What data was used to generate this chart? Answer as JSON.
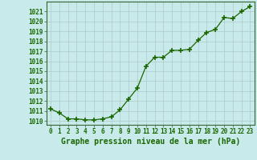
{
  "x": [
    0,
    1,
    2,
    3,
    4,
    5,
    6,
    7,
    8,
    9,
    10,
    11,
    12,
    13,
    14,
    15,
    16,
    17,
    18,
    19,
    20,
    21,
    22,
    23
  ],
  "y": [
    1011.2,
    1010.8,
    1010.2,
    1010.2,
    1010.1,
    1010.1,
    1010.2,
    1010.4,
    1011.1,
    1012.2,
    1013.3,
    1015.5,
    1016.4,
    1016.4,
    1017.1,
    1017.1,
    1017.2,
    1018.1,
    1018.9,
    1019.2,
    1020.4,
    1020.3,
    1021.0,
    1021.5
  ],
  "line_color": "#1a6600",
  "marker": "+",
  "marker_size": 4,
  "marker_lw": 1.2,
  "line_width": 0.9,
  "line_style": "-",
  "bg_color": "#c8eaea",
  "grid_color": "#b0c8c8",
  "xlabel": "Graphe pression niveau de la mer (hPa)",
  "xlabel_fontsize": 7,
  "xlabel_color": "#1a6600",
  "ylabel_ticks": [
    1010,
    1011,
    1012,
    1013,
    1014,
    1015,
    1016,
    1017,
    1018,
    1019,
    1020,
    1021
  ],
  "ylim": [
    1009.6,
    1022.0
  ],
  "xlim": [
    -0.5,
    23.5
  ],
  "tick_fontsize": 5.5,
  "tick_color": "#1a6600",
  "xtick_labels": [
    "0",
    "1",
    "2",
    "3",
    "4",
    "5",
    "6",
    "7",
    "8",
    "9",
    "10",
    "11",
    "12",
    "13",
    "14",
    "15",
    "16",
    "17",
    "18",
    "19",
    "20",
    "21",
    "22",
    "23"
  ]
}
